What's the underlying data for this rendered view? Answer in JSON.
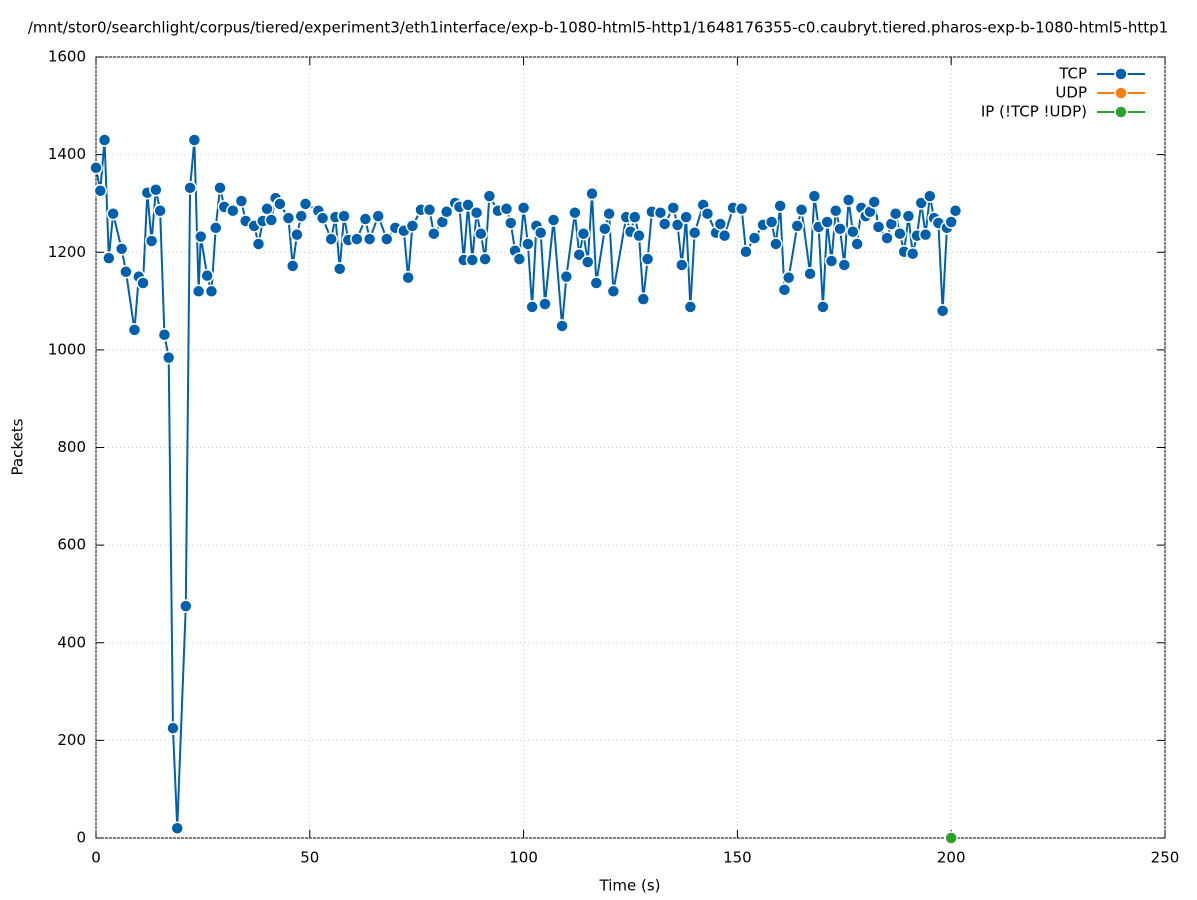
{
  "chart_data": {
    "type": "line",
    "title": "/mnt/stor0/searchlight/corpus/tiered/experiment3/eth1interface/exp-b-1080-html5-http1/1648176355-c0.caubryt.tiered.pharos-exp-b-1080-html5-http1",
    "x_label": "Time (s)",
    "y_label": "Packets",
    "xlim": [
      0,
      250
    ],
    "xticks": [
      0,
      50,
      100,
      150,
      200,
      250
    ],
    "ylim": [
      0,
      1600
    ],
    "yticks": [
      0,
      200,
      400,
      600,
      800,
      1000,
      1200,
      1400,
      1600
    ],
    "grid": true,
    "legend": "top-right",
    "series": [
      {
        "name": "TCP",
        "color": "#0060ad",
        "x": [
          0,
          1,
          2,
          3,
          4,
          6,
          7,
          9,
          10,
          11,
          12,
          13,
          14,
          15,
          16,
          17,
          18,
          19,
          21,
          22,
          23,
          24,
          24.5,
          26,
          27,
          28,
          29,
          30,
          32,
          34,
          35,
          37,
          38,
          39,
          40,
          41,
          42,
          43,
          45,
          46,
          47,
          48,
          49,
          52,
          53,
          55,
          56,
          57,
          58,
          59,
          61,
          63,
          64,
          66,
          68,
          70,
          72,
          73,
          74,
          76,
          78,
          79,
          81,
          82,
          84,
          85,
          86,
          87,
          88,
          89,
          90,
          91,
          92,
          94,
          96,
          97,
          98,
          99,
          100,
          101,
          102,
          103,
          104,
          105,
          107,
          109,
          110,
          112,
          113,
          114,
          115,
          116,
          117,
          119,
          120,
          121,
          124,
          125,
          126,
          127,
          128,
          129,
          130,
          132,
          133,
          135,
          136,
          137,
          138,
          139,
          140,
          142,
          143,
          145,
          146,
          147,
          149,
          151,
          152,
          154,
          156,
          158,
          159,
          160,
          161,
          162,
          164,
          165,
          167,
          168,
          169,
          170,
          171,
          172,
          173,
          174,
          175,
          176,
          177,
          178,
          179,
          180,
          181,
          182,
          183,
          185,
          186,
          187,
          188,
          189,
          190,
          191,
          192,
          193,
          194,
          195,
          196,
          197,
          198,
          199,
          200,
          201
        ],
        "values": [
          1373,
          1326,
          1430,
          1188,
          1279,
          1207,
          1160,
          1041,
          1150,
          1137,
          1322,
          1223,
          1328,
          1285,
          1031,
          984,
          225,
          20,
          475,
          1332,
          1430,
          1120,
          1232,
          1152,
          1120,
          1250,
          1332,
          1293,
          1285,
          1305,
          1264,
          1254,
          1217,
          1264,
          1289,
          1266,
          1311,
          1299,
          1270,
          1172,
          1236,
          1274,
          1299,
          1285,
          1270,
          1227,
          1272,
          1166,
          1274,
          1225,
          1227,
          1268,
          1227,
          1274,
          1227,
          1250,
          1244,
          1148,
          1254,
          1287,
          1287,
          1238,
          1262,
          1283,
          1301,
          1293,
          1184,
          1297,
          1184,
          1281,
          1238,
          1186,
          1315,
          1285,
          1289,
          1260,
          1203,
          1186,
          1291,
          1217,
          1088,
          1254,
          1240,
          1094,
          1266,
          1049,
          1150,
          1281,
          1195,
          1238,
          1180,
          1320,
          1137,
          1248,
          1279,
          1120,
          1272,
          1242,
          1272,
          1234,
          1104,
          1186,
          1283,
          1281,
          1258,
          1291,
          1256,
          1174,
          1272,
          1088,
          1240,
          1297,
          1279,
          1240,
          1258,
          1234,
          1291,
          1289,
          1201,
          1229,
          1256,
          1262,
          1217,
          1295,
          1123,
          1148,
          1254,
          1287,
          1156,
          1315,
          1252,
          1088,
          1262,
          1182,
          1285,
          1248,
          1174,
          1307,
          1242,
          1217,
          1291,
          1274,
          1283,
          1303,
          1252,
          1229,
          1258,
          1279,
          1238,
          1201,
          1274,
          1197,
          1234,
          1301,
          1236,
          1315,
          1270,
          1260,
          1080,
          1250,
          1262,
          1285
        ]
      },
      {
        "name": "UDP",
        "color": "#ff7f0e",
        "x": [],
        "values": []
      },
      {
        "name": "IP (!TCP  !UDP)",
        "color": "#2ca02c",
        "x": [
          200
        ],
        "values": [
          0
        ]
      }
    ]
  }
}
